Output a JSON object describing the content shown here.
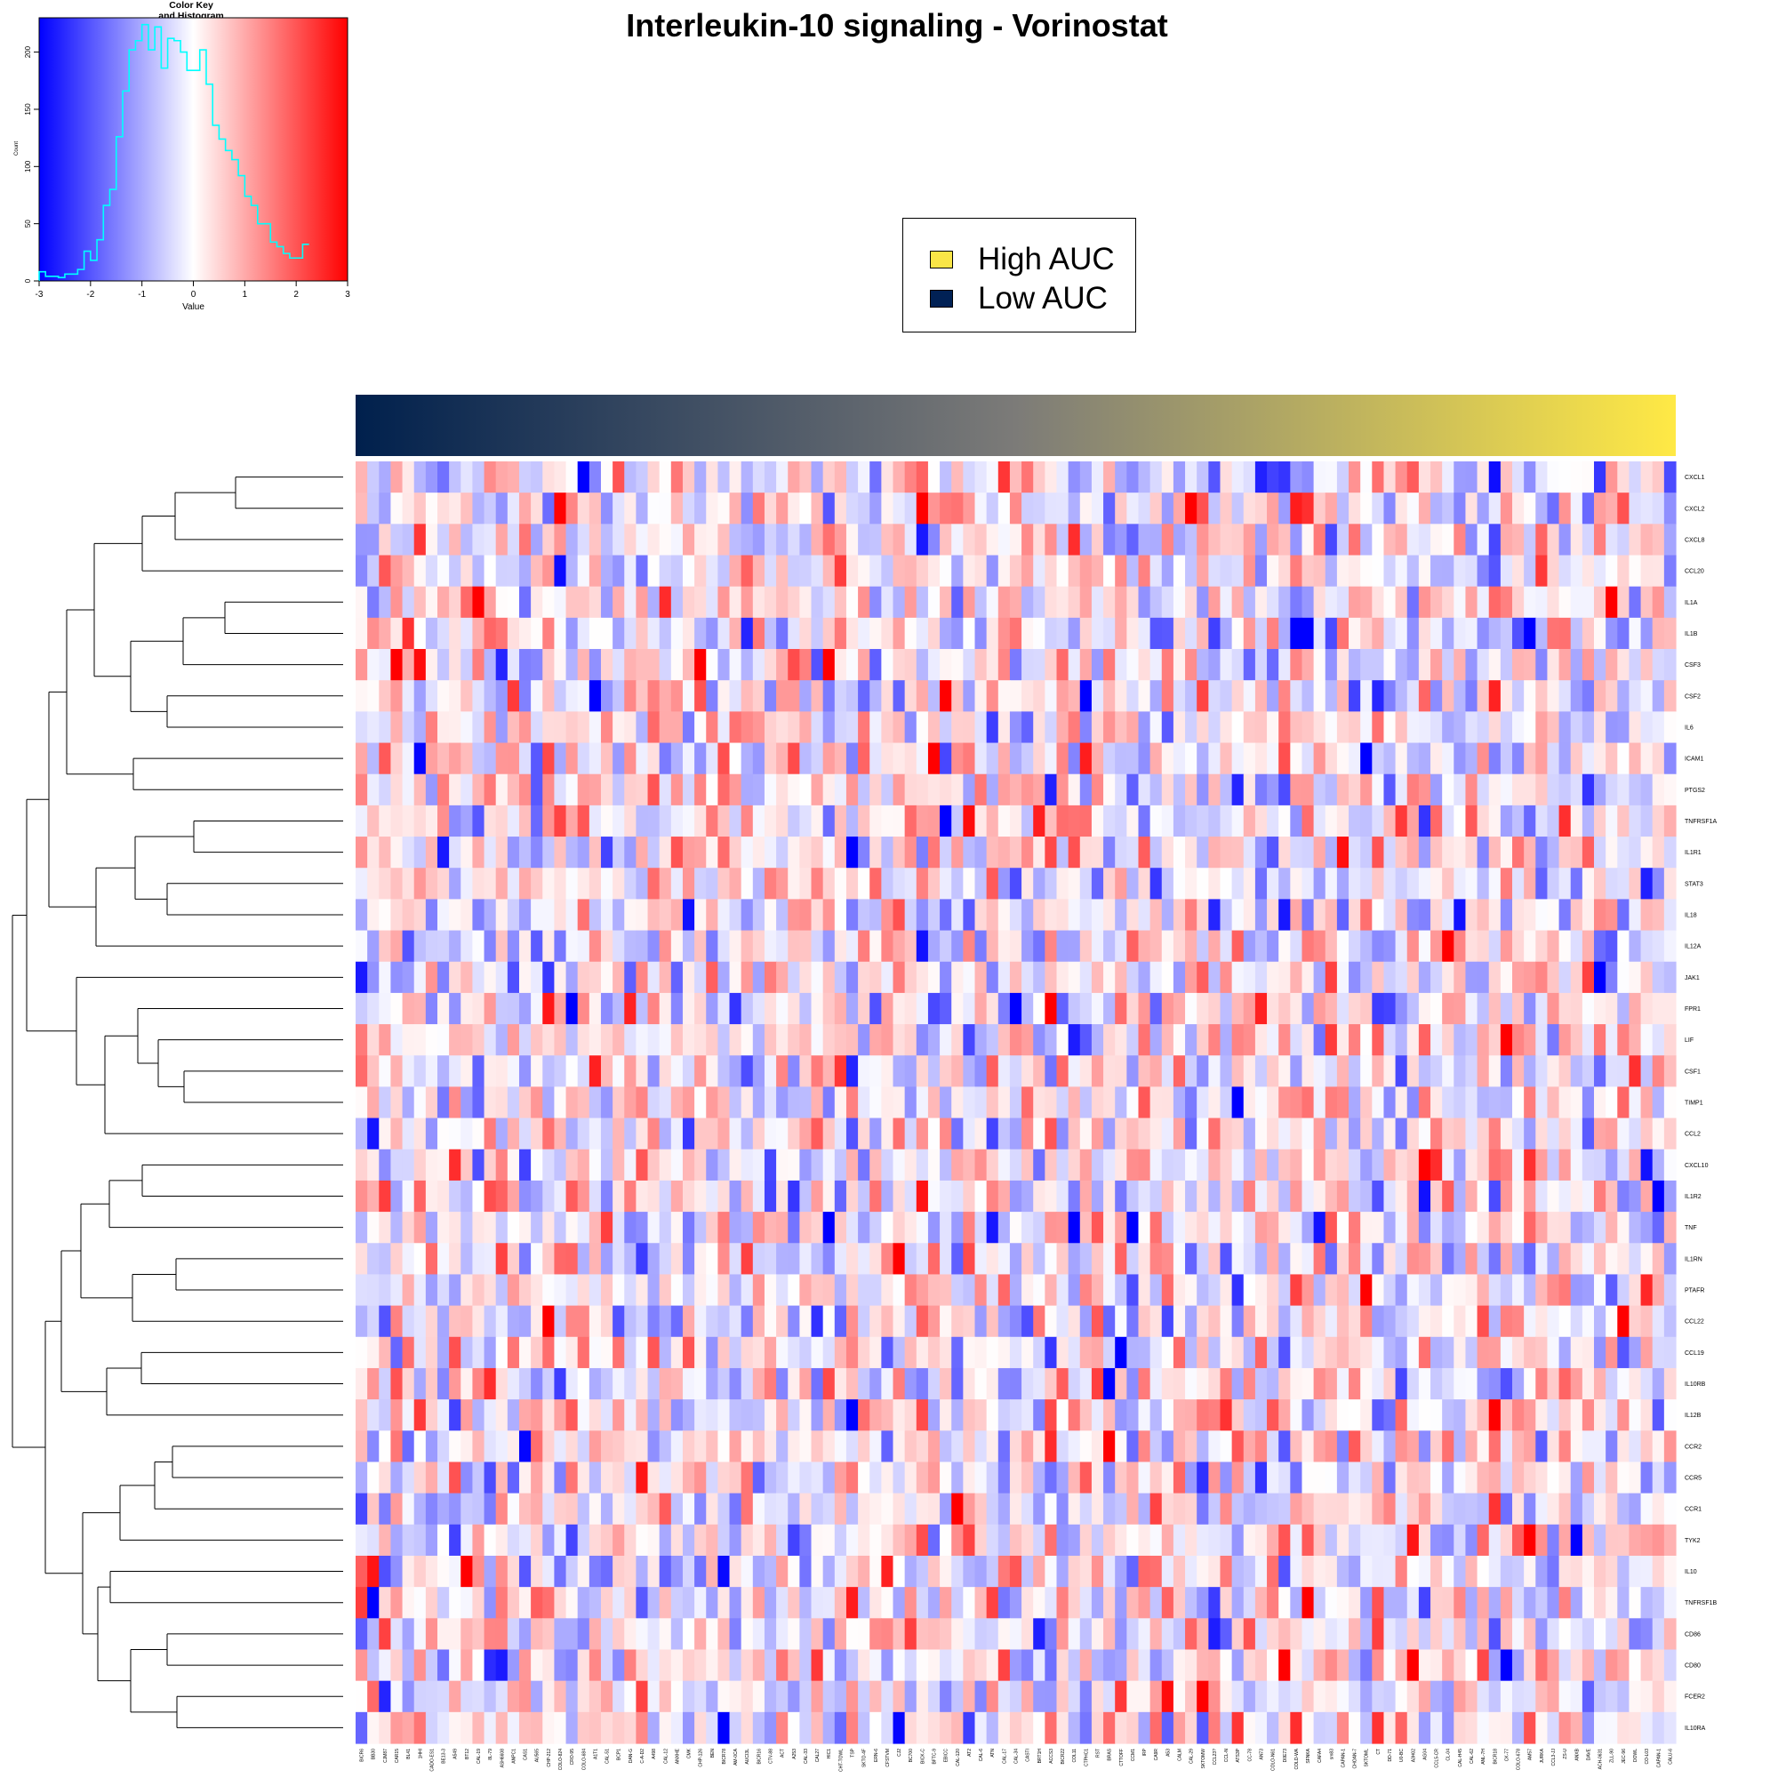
{
  "title": "Interleukin-10 signaling - Vorinostat",
  "color_key": {
    "title_line1": "Color Key",
    "title_line2": "and Histogram",
    "xlabel": "Value",
    "ylabel": "Count",
    "xticks": [
      "-3",
      "-2",
      "-1",
      "0",
      "1",
      "2",
      "3"
    ],
    "yticks": [
      "0",
      "50",
      "100",
      "150",
      "200"
    ],
    "low_color": "#0000ff",
    "mid_color": "#ffffff",
    "high_color": "#ff0000",
    "hist_color": "#00ffff"
  },
  "legend": {
    "items": [
      {
        "label": "High AUC",
        "color": "#f9e547"
      },
      {
        "label": "Low AUC",
        "color": "#012155"
      }
    ]
  },
  "auc_bar": {
    "start_color": "#00204d",
    "mid_color": "#7c7b78",
    "end_color": "#ffe945"
  },
  "chart_data": {
    "type": "heatmap",
    "rows": [
      "CXCL1",
      "CXCL2",
      "CXCL8",
      "CCL20",
      "IL1A",
      "IL1B",
      "CSF3",
      "CSF2",
      "IL6",
      "ICAM1",
      "PTGS2",
      "TNFRSF1A",
      "IL1R1",
      "STAT3",
      "IL18",
      "IL12A",
      "JAK1",
      "FPR1",
      "LIF",
      "CSF1",
      "TIMP1",
      "CCL2",
      "CXCL10",
      "IL1R2",
      "TNF",
      "IL1RN",
      "PTAFR",
      "CCL22",
      "CCL19",
      "IL10RB",
      "IL12B",
      "CCR2",
      "CCR5",
      "CCR1",
      "TYK2",
      "IL10",
      "TNFRSF1B",
      "CD86",
      "CD80",
      "FCER2",
      "IL10RA"
    ],
    "columns": [
      "BICR6",
      "BB30",
      "CJM87",
      "CAR15",
      "BL41",
      "1HHI",
      "CADO-ES1",
      "BE13-3",
      "A549",
      "BT12",
      "CAL-19",
      "8L-79",
      "ASH6608",
      "ANPC1",
      "CAS1",
      "AU565",
      "CHP-212",
      "COLO-824",
      "CRO-95",
      "COLO-684",
      "A1T1",
      "CAL-51",
      "BCP1",
      "DAN-G",
      "C-A-D2",
      "A498",
      "CAL-12",
      "ANXHE",
      "CMK",
      "CHP-126",
      "BEN",
      "BICR78",
      "AM-0CA",
      "AUCI3L",
      "BICR16",
      "CTV-88",
      "ACT",
      "A253",
      "CAL-33",
      "CAL27",
      "HIC1",
      "CHT-TOWL",
      "TSP",
      "SKTO-4F",
      "ERN-6",
      "CFSTVM",
      "CJ2",
      "BC700",
      "BICK-C",
      "BFTC-9",
      "EBICC",
      "CAL-120",
      "AT2",
      "CAL-6",
      "ATN",
      "CAL-17",
      "CAL-34",
      "CASTI",
      "BRT1H",
      "ACCS3",
      "BICR22",
      "COL11",
      "CTPHC1",
      "RST",
      "BRAS",
      "CTTOFF",
      "CCM1",
      "IRP",
      "CA9R",
      "A53",
      "CALM",
      "CAL-29",
      "SKTOMW",
      "CCL23?",
      "CCL-N",
      "ATS3P",
      "CC-78",
      "AN73",
      "COLO-N61",
      "D0E73",
      "COLD-WA",
      "SFNKA",
      "CAFA4",
      "sm83",
      "CAPAN-1",
      "CHOAN-7",
      "SKTOML",
      "CT",
      "DD-71",
      "U0-BC",
      "A3H02",
      "AG04",
      "CCL5-CR",
      "CL-04",
      "CAL-H45",
      "CAL-62",
      "ANL-7H",
      "BICR18",
      "CK-77",
      "COLO-678",
      "AM57",
      "JURKA",
      "CCL3-JJ",
      "ZS-U",
      "ANXB",
      "DAVE",
      "ACH-0631",
      "ZLL-90",
      "JEC-96",
      "DOWL",
      "CO-L03",
      "CAPAN-1",
      "CALU-6"
    ],
    "color_scale": {
      "min": -3,
      "max": 3,
      "colors": [
        "#0000ff",
        "#ffffff",
        "#ff0000"
      ]
    },
    "histogram": {
      "x_range": [
        -3,
        3
      ],
      "y_range": [
        0,
        230
      ],
      "bin_width": 0.125,
      "bin_edges_start": -3,
      "counts": [
        8,
        4,
        4,
        3,
        6,
        6,
        10,
        26,
        18,
        36,
        66,
        80,
        126,
        166,
        202,
        210,
        224,
        202,
        222,
        186,
        212,
        210,
        200,
        184,
        184,
        202,
        172,
        136,
        124,
        114,
        106,
        92,
        74,
        66,
        50,
        50,
        34,
        30,
        24,
        20,
        20,
        32
      ]
    },
    "xlabel": "",
    "ylabel": "",
    "annotation_bar": {
      "label_low": "Low AUC",
      "label_high": "High AUC"
    }
  }
}
